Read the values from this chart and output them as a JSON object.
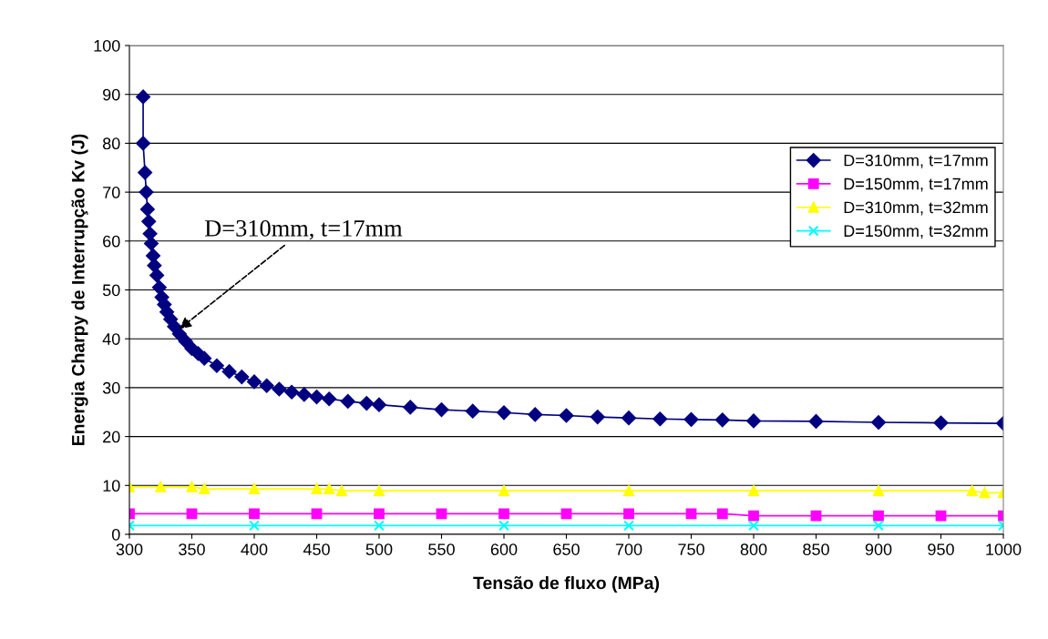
{
  "chart_data": {
    "type": "line",
    "xlabel": "Tensão de fluxo (MPa)",
    "ylabel": "Energia Charpy de Interrupção Kv (J)",
    "xlim": [
      300,
      1000
    ],
    "xticks": [
      300,
      350,
      400,
      450,
      500,
      550,
      600,
      650,
      700,
      750,
      800,
      850,
      900,
      950,
      1000
    ],
    "ylim": [
      0,
      100
    ],
    "yticks": [
      0,
      10,
      20,
      30,
      40,
      50,
      60,
      70,
      80,
      90,
      100
    ],
    "grid": "y",
    "legend": "right",
    "annotations": [
      {
        "text": "D=310mm, t=17mm",
        "x": 340,
        "y": 42
      }
    ],
    "series": [
      {
        "name": "D=310mm, t=17mm",
        "color": "#000080",
        "marker": "diamond",
        "x": [
          311,
          311,
          312.5,
          313.5,
          314.5,
          315.5,
          316.5,
          317.5,
          319,
          320,
          322,
          324,
          326,
          328,
          330,
          333,
          336,
          340,
          345,
          350,
          355,
          360,
          370,
          380,
          390,
          400,
          410,
          420,
          430,
          440,
          450,
          460,
          475,
          490,
          500,
          525,
          550,
          575,
          600,
          625,
          650,
          675,
          700,
          725,
          750,
          775,
          800,
          850,
          900,
          950,
          1000
        ],
        "values": [
          89.5,
          80,
          74,
          70,
          66.5,
          64,
          61.5,
          59.5,
          57,
          55,
          53,
          50.5,
          48.5,
          47,
          45.5,
          44,
          42.5,
          41,
          39.5,
          38,
          37,
          36,
          34.5,
          33.3,
          32.2,
          31.2,
          30.4,
          29.7,
          29.1,
          28.6,
          28.1,
          27.7,
          27.2,
          26.8,
          26.5,
          26,
          25.5,
          25.2,
          24.9,
          24.5,
          24.3,
          24,
          23.8,
          23.6,
          23.5,
          23.4,
          23.2,
          23.1,
          22.9,
          22.8,
          22.7
        ]
      },
      {
        "name": "D=150mm, t=17mm",
        "color": "#ff00ff",
        "marker": "square",
        "x": [
          300,
          350,
          400,
          450,
          500,
          550,
          600,
          650,
          700,
          750,
          775,
          800,
          850,
          900,
          950,
          1000
        ],
        "values": [
          4.2,
          4.2,
          4.2,
          4.2,
          4.2,
          4.2,
          4.2,
          4.2,
          4.2,
          4.2,
          4.2,
          3.8,
          3.8,
          3.8,
          3.8,
          3.8
        ]
      },
      {
        "name": "D=310mm, t=32mm",
        "color": "#ffff00",
        "marker": "triangle",
        "x": [
          300,
          325,
          350,
          360,
          400,
          450,
          460,
          470,
          500,
          600,
          700,
          800,
          900,
          975,
          985,
          1000
        ],
        "values": [
          9.7,
          9.7,
          9.7,
          9.3,
          9.3,
          9.3,
          9.3,
          8.9,
          8.9,
          8.9,
          8.9,
          8.9,
          8.9,
          8.9,
          8.5,
          8.5
        ]
      },
      {
        "name": "D=150mm, t=32mm",
        "color": "#00ffff",
        "marker": "cross",
        "x": [
          300,
          400,
          500,
          600,
          700,
          800,
          900,
          1000
        ],
        "values": [
          1.8,
          1.8,
          1.8,
          1.8,
          1.8,
          1.8,
          1.8,
          1.8
        ]
      }
    ]
  }
}
